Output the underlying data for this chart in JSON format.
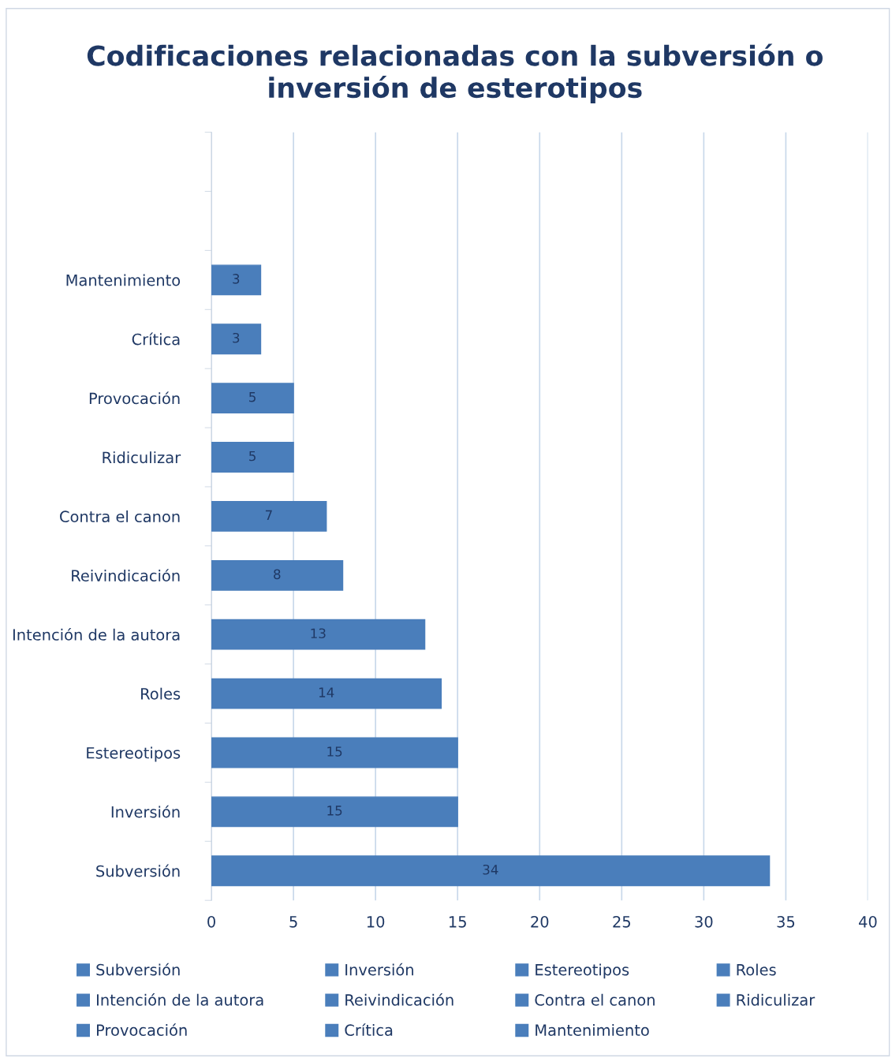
{
  "chart_data": {
    "type": "bar",
    "orientation": "horizontal",
    "title": "Codificaciones relacionadas con la subversión o inversión de esterotipos",
    "categories": [
      null,
      null,
      "Mantenimiento",
      "Crítica",
      "Provocación",
      "Ridiculizar",
      "Contra el canon",
      "Reivindicación",
      "Intención de la autora",
      "Roles",
      "Estereotipos",
      "Inversión",
      "Subversión"
    ],
    "series": [
      {
        "name": "Subversión",
        "color": "#4a7ebb",
        "values": [
          null,
          null,
          null,
          null,
          null,
          null,
          null,
          null,
          null,
          null,
          null,
          null,
          34
        ]
      },
      {
        "name": "Inversión",
        "color": "#4a7ebb",
        "values": [
          null,
          null,
          null,
          null,
          null,
          null,
          null,
          null,
          null,
          null,
          null,
          15,
          null
        ]
      },
      {
        "name": "Estereotipos",
        "color": "#4a7ebb",
        "values": [
          null,
          null,
          null,
          null,
          null,
          null,
          null,
          null,
          null,
          null,
          15,
          null,
          null
        ]
      },
      {
        "name": "Roles",
        "color": "#4a7ebb",
        "values": [
          null,
          null,
          null,
          null,
          null,
          null,
          null,
          null,
          null,
          14,
          null,
          null,
          null
        ]
      },
      {
        "name": "Intención de la autora",
        "color": "#4a7ebb",
        "values": [
          null,
          null,
          null,
          null,
          null,
          null,
          null,
          null,
          13,
          null,
          null,
          null,
          null
        ]
      },
      {
        "name": "Reivindicación",
        "color": "#4a7ebb",
        "values": [
          null,
          null,
          null,
          null,
          null,
          null,
          null,
          8,
          null,
          null,
          null,
          null,
          null
        ]
      },
      {
        "name": "Contra el canon",
        "color": "#4a7ebb",
        "values": [
          null,
          null,
          null,
          null,
          null,
          null,
          7,
          null,
          null,
          null,
          null,
          null,
          null
        ]
      },
      {
        "name": "Ridiculizar",
        "color": "#4a7ebb",
        "values": [
          null,
          null,
          null,
          null,
          null,
          5,
          null,
          null,
          null,
          null,
          null,
          null,
          null
        ]
      },
      {
        "name": "Provocación",
        "color": "#4a7ebb",
        "values": [
          null,
          null,
          null,
          null,
          5,
          null,
          null,
          null,
          null,
          null,
          null,
          null,
          null
        ]
      },
      {
        "name": "Crítica",
        "color": "#4a7ebb",
        "values": [
          null,
          null,
          null,
          3,
          null,
          null,
          null,
          null,
          null,
          null,
          null,
          null,
          null
        ]
      },
      {
        "name": "Mantenimiento",
        "color": "#4a7ebb",
        "values": [
          null,
          null,
          3,
          null,
          null,
          null,
          null,
          null,
          null,
          null,
          null,
          null,
          null
        ]
      }
    ],
    "data_labels": true,
    "xlim": [
      0,
      40
    ],
    "xticks": [
      0,
      5,
      10,
      15,
      20,
      25,
      30,
      35,
      40
    ],
    "grid": "x",
    "legend": "bottom"
  }
}
